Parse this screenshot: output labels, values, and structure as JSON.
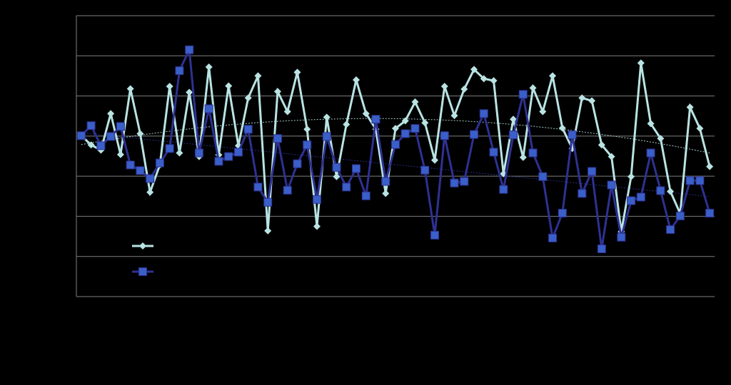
{
  "chart_data": {
    "type": "line",
    "categories": [
      null,
      null,
      null,
      null,
      null,
      null,
      null,
      null,
      null,
      null,
      null,
      null,
      null,
      null,
      null,
      null,
      null,
      null,
      null,
      null,
      null,
      null,
      null,
      null,
      null,
      null,
      null,
      null,
      null,
      null,
      null,
      null,
      null,
      null,
      null,
      null,
      null,
      null,
      null,
      null,
      null,
      null,
      null,
      null,
      null,
      null,
      null,
      null,
      null,
      null,
      null,
      null,
      null,
      null,
      null,
      null,
      null,
      null,
      null,
      null,
      null,
      null,
      null,
      null,
      null
    ],
    "series": [
      {
        "color": "#b9e3e3",
        "marker": "diamond",
        "trendline_order": 2,
        "values": [
          4.01,
          3.78,
          3.65,
          4.56,
          3.54,
          5.18,
          4.06,
          2.6,
          3.28,
          5.24,
          3.58,
          5.09,
          3.49,
          5.72,
          3.53,
          5.25,
          3.76,
          4.95,
          5.5,
          1.64,
          5.11,
          4.61,
          5.59,
          4.17,
          1.75,
          4.47,
          2.99,
          4.29,
          5.4,
          4.56,
          4.17,
          2.57,
          4.19,
          4.38,
          4.85,
          4.33,
          3.4,
          5.24,
          4.51,
          5.17,
          5.66,
          5.43,
          5.38,
          3.06,
          4.42,
          3.47,
          5.2,
          4.61,
          5.5,
          4.2,
          3.69,
          4.95,
          4.88,
          3.78,
          3.49,
          1.62,
          2.99,
          5.82,
          4.31,
          3.94,
          2.62,
          2.07,
          4.72,
          4.19,
          3.24
        ]
      },
      {
        "color": "#2e3192",
        "marker_color": "#3a5fc8",
        "marker": "square",
        "trendline_order": 1,
        "values": [
          4.01,
          4.26,
          3.76,
          3.99,
          4.24,
          3.28,
          3.14,
          2.94,
          3.33,
          3.69,
          5.63,
          6.15,
          3.58,
          4.68,
          3.37,
          3.49,
          3.6,
          4.17,
          2.73,
          2.35,
          3.94,
          2.65,
          3.31,
          3.78,
          2.42,
          3.99,
          3.22,
          2.73,
          3.19,
          2.51,
          4.42,
          2.87,
          3.79,
          4.06,
          4.19,
          3.15,
          1.53,
          4.01,
          2.83,
          2.87,
          4.04,
          4.56,
          3.6,
          2.67,
          4.03,
          5.04,
          3.58,
          2.99,
          1.46,
          2.08,
          4.03,
          2.57,
          3.12,
          1.19,
          2.78,
          1.48,
          2.39,
          2.48,
          3.58,
          2.64,
          1.67,
          2.01,
          2.89,
          2.89,
          2.08
        ]
      }
    ],
    "ylim": [
      0,
      7
    ],
    "yticks": [
      0,
      1,
      2,
      3,
      4,
      5,
      6,
      7
    ],
    "grid": true,
    "background": "#000000"
  }
}
